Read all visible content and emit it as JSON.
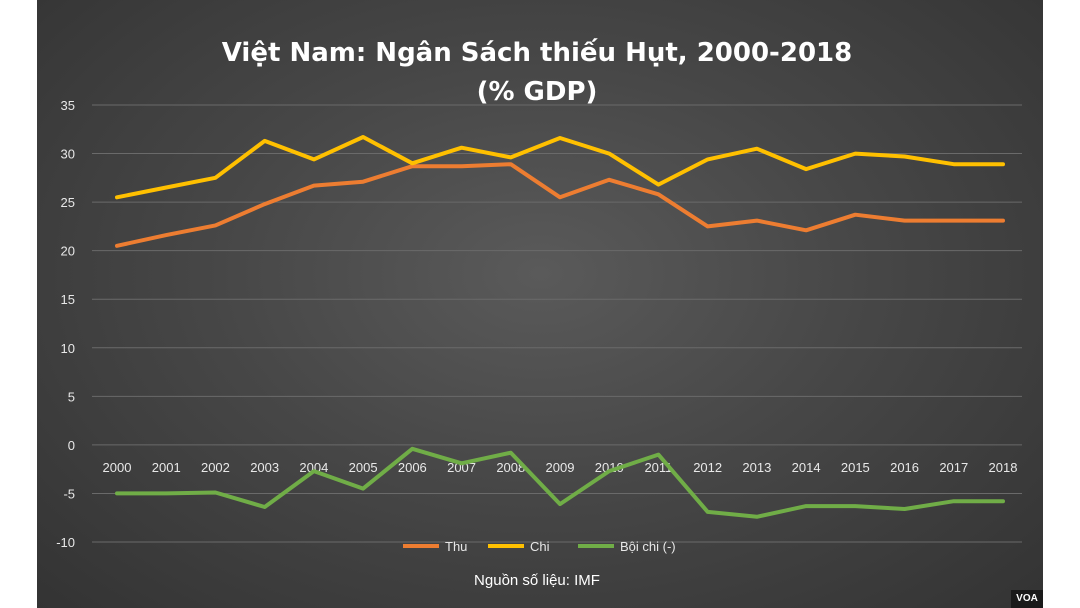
{
  "chart_data": {
    "type": "line",
    "title_line1": "Việt Nam: Ngân Sách thiếu Hụt, 2000-2018",
    "title_line2": "(% GDP)",
    "x": [
      "2000",
      "2001",
      "2002",
      "2003",
      "2004",
      "2005",
      "2006",
      "2007",
      "2008",
      "2009",
      "2010",
      "2011",
      "2012",
      "2013",
      "2014",
      "2015",
      "2016",
      "2017",
      "2018"
    ],
    "ylim": [
      -10,
      35
    ],
    "yticks": [
      35,
      30,
      25,
      20,
      15,
      10,
      5,
      0,
      -5,
      -10
    ],
    "grid": true,
    "legend_position": "bottom",
    "series": [
      {
        "name": "Thu",
        "color": "#ED7D31",
        "values": [
          20.5,
          21.6,
          22.6,
          24.8,
          26.7,
          27.1,
          28.7,
          28.7,
          28.9,
          25.5,
          27.3,
          25.8,
          22.5,
          23.1,
          22.1,
          23.7,
          23.1,
          23.1,
          23.1
        ]
      },
      {
        "name": "Chi",
        "color": "#FFC000",
        "values": [
          25.5,
          26.5,
          27.5,
          31.3,
          29.4,
          31.7,
          29.0,
          30.6,
          29.6,
          31.6,
          30.0,
          26.8,
          29.4,
          30.5,
          28.4,
          30.0,
          29.7,
          28.9,
          28.9
        ]
      },
      {
        "name": "Bội chi (-)",
        "color": "#70AD47",
        "values": [
          -5.0,
          -5.0,
          -4.9,
          -6.4,
          -2.7,
          -4.5,
          -0.4,
          -1.9,
          -0.8,
          -6.1,
          -2.7,
          -1.0,
          -6.9,
          -7.4,
          -6.3,
          -6.3,
          -6.6,
          -5.8,
          -5.8
        ]
      }
    ],
    "source": "Nguồn số liệu: IMF"
  },
  "badge": {
    "label": "VOA"
  }
}
